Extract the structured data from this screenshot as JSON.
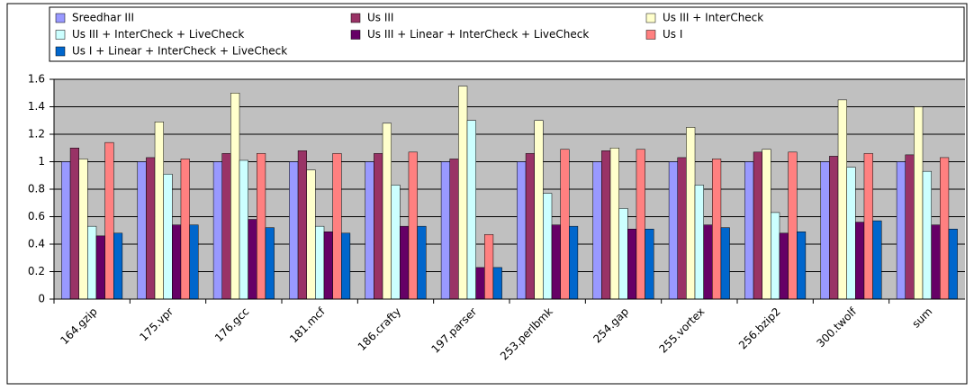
{
  "chart_data": {
    "type": "bar",
    "categories": [
      "164.gzip",
      "175.vpr",
      "176.gcc",
      "181.mcf",
      "186.crafty",
      "197.parser",
      "253.perlbmk",
      "254.gap",
      "255.vortex",
      "256.bzip2",
      "300.twolf",
      "sum"
    ],
    "series": [
      {
        "name": "Sreedhar III",
        "color": "#9999ff",
        "values": [
          1.0,
          1.0,
          1.0,
          1.0,
          1.0,
          1.0,
          1.0,
          1.0,
          1.0,
          1.0,
          1.0,
          1.0
        ]
      },
      {
        "name": "Us III",
        "color": "#993366",
        "values": [
          1.1,
          1.03,
          1.06,
          1.08,
          1.06,
          1.02,
          1.06,
          1.08,
          1.03,
          1.07,
          1.04,
          1.05
        ]
      },
      {
        "name": "Us III + InterCheck",
        "color": "#ffffcc",
        "values": [
          1.02,
          1.29,
          1.5,
          0.94,
          1.28,
          1.55,
          1.3,
          1.1,
          1.25,
          1.09,
          1.45,
          1.4
        ]
      },
      {
        "name": "Us III + InterCheck + LiveCheck",
        "color": "#ccffff",
        "values": [
          0.53,
          0.91,
          1.01,
          0.53,
          0.83,
          1.3,
          0.77,
          0.66,
          0.83,
          0.63,
          0.96,
          0.93
        ]
      },
      {
        "name": "Us III + Linear + InterCheck + LiveCheck",
        "color": "#660066",
        "values": [
          0.46,
          0.54,
          0.58,
          0.49,
          0.53,
          0.23,
          0.54,
          0.51,
          0.54,
          0.48,
          0.56,
          0.54
        ]
      },
      {
        "name": "Us I",
        "color": "#ff8080",
        "values": [
          1.14,
          1.02,
          1.06,
          1.06,
          1.07,
          0.47,
          1.09,
          1.09,
          1.02,
          1.07,
          1.06,
          1.03
        ]
      },
      {
        "name": "Us I + Linear + InterCheck + LiveCheck",
        "color": "#0066cc",
        "values": [
          0.48,
          0.54,
          0.52,
          0.48,
          0.53,
          0.23,
          0.53,
          0.51,
          0.52,
          0.49,
          0.57,
          0.51
        ]
      }
    ],
    "ylim": [
      0,
      1.6
    ],
    "yticks": [
      0,
      0.2,
      0.4,
      0.6,
      0.8,
      1,
      1.2,
      1.4,
      1.6
    ],
    "grid": true,
    "legend": "top"
  }
}
